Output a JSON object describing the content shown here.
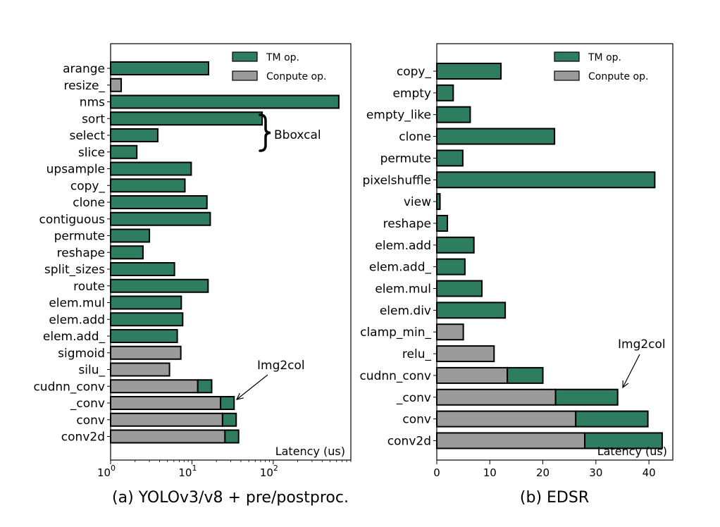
{
  "colors": {
    "tm": "#2e7d60",
    "compute": "#9b9b9b",
    "edge": "#000000"
  },
  "chart_data": [
    {
      "type": "bar",
      "orientation": "horizontal",
      "stacked": true,
      "xscale": "log",
      "title": "(a) YOLOv3/v8 + pre/postproc.",
      "xlabel": "Latency (us)",
      "xlim": [
        1,
        900
      ],
      "xticks": [
        {
          "value": 1,
          "base": "10",
          "exp": "0"
        },
        {
          "value": 10,
          "base": "10",
          "exp": "1"
        },
        {
          "value": 100,
          "base": "10",
          "exp": "2"
        }
      ],
      "legend_loc": "top-right",
      "legend": [
        "TM op.",
        "Conpute op."
      ],
      "categories": [
        "arange",
        "resize_",
        "nms",
        "sort",
        "select",
        "slice",
        "upsample",
        "copy_",
        "clone",
        "contiguous",
        "permute",
        "reshape",
        "split_sizes",
        "route",
        "elem.mul",
        "elem.add",
        "elem.add_",
        "sigmoid",
        "silu_",
        "cudnn_conv",
        "_conv",
        "conv",
        "conv2d"
      ],
      "series": [
        {
          "name": "Conpute op.",
          "values": [
            0,
            1.35,
            0,
            0,
            0,
            0,
            0,
            0,
            0,
            0,
            0,
            0,
            0,
            0,
            0,
            0,
            0,
            7.3,
            5.3,
            11.8,
            22.5,
            23.8,
            25.5
          ]
        },
        {
          "name": "TM op.",
          "values": [
            16,
            0,
            640,
            73,
            3.8,
            2.1,
            9.8,
            8.2,
            15.3,
            16.8,
            3.0,
            2.5,
            6.1,
            15.8,
            7.4,
            7.7,
            6.6,
            0,
            0,
            5.7,
            10.5,
            11.2,
            12.0
          ]
        }
      ],
      "annotations": [
        {
          "text": "Bboxcal",
          "target": "sort..slice"
        },
        {
          "text": "Img2col",
          "target": "_conv"
        }
      ]
    },
    {
      "type": "bar",
      "orientation": "horizontal",
      "stacked": true,
      "xscale": "linear",
      "title": "(b) EDSR",
      "xlabel": "Latency (us)",
      "xlim": [
        0,
        44.5
      ],
      "xticks": [
        {
          "value": 0,
          "label": "0"
        },
        {
          "value": 10,
          "label": "10"
        },
        {
          "value": 20,
          "label": "20"
        },
        {
          "value": 30,
          "label": "30"
        },
        {
          "value": 40,
          "label": "40"
        }
      ],
      "legend_loc": "top-right",
      "legend": [
        "TM op.",
        "Conpute op."
      ],
      "categories": [
        "copy_",
        "empty",
        "empty_like",
        "clone",
        "permute",
        "pixelshuffle",
        "view",
        "reshape",
        "elem.add",
        "elem.add_",
        "elem.mul",
        "elem.div",
        "clamp_min_",
        "relu_",
        "cudnn_conv",
        "_conv",
        "conv",
        "conv2d"
      ],
      "series": [
        {
          "name": "Conpute op.",
          "values": [
            0,
            0,
            0,
            0,
            0,
            0,
            0,
            0,
            0,
            0,
            0,
            0,
            5.0,
            10.8,
            13.3,
            22.4,
            26.2,
            27.9
          ]
        },
        {
          "name": "TM op.",
          "values": [
            12.1,
            3.1,
            6.3,
            22.2,
            4.9,
            41.1,
            0.6,
            2.0,
            7.0,
            5.3,
            8.5,
            12.9,
            0,
            0,
            6.7,
            11.7,
            13.6,
            14.6
          ]
        }
      ],
      "annotations": [
        {
          "text": "Img2col",
          "target": "_conv"
        }
      ]
    }
  ]
}
